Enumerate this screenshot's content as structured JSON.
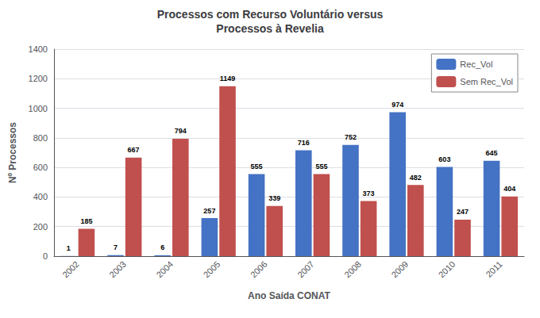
{
  "chart_data": {
    "type": "bar",
    "title": "Processos com Recurso Voluntário versus\nProcessos à Revelia",
    "xlabel": "Ano Saída CONAT",
    "ylabel": "Nº Processos",
    "categories": [
      "2002",
      "2003",
      "2004",
      "2005",
      "2006",
      "2007",
      "2008",
      "2009",
      "2010",
      "2011"
    ],
    "series": [
      {
        "name": "Rec_Vol",
        "color": "#4472C4",
        "values": [
          1,
          7,
          6,
          257,
          555,
          716,
          752,
          974,
          603,
          645
        ]
      },
      {
        "name": "Sem Rec_Vol",
        "color": "#C0504D",
        "values": [
          185,
          667,
          794,
          1149,
          339,
          555,
          373,
          482,
          247,
          404
        ]
      }
    ],
    "ylim": [
      0,
      1400
    ],
    "yticks": [
      0,
      200,
      400,
      600,
      800,
      1000,
      1200,
      1400
    ],
    "grid": true,
    "legend": "upper right",
    "data_labels": true
  }
}
